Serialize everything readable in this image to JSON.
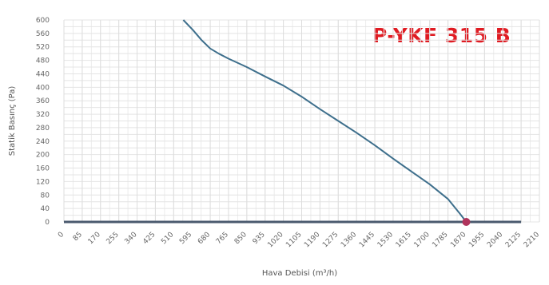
{
  "chart_data": {
    "type": "line",
    "title": "P-YKF 315 B",
    "xlabel": "Hava Debisi (m³/h)",
    "ylabel": "Statik Basınç (Pa)",
    "x_ticks": [
      "0",
      "85",
      "170",
      "255",
      "340",
      "425",
      "510",
      "595",
      "680",
      "765",
      "850",
      "935",
      "1020",
      "1105",
      "1190",
      "1275",
      "1360",
      "1445",
      "1530",
      "1615",
      "1700",
      "1785",
      "1870",
      "1955",
      "2040",
      "2125",
      "2210"
    ],
    "y_ticks": [
      "0",
      "40",
      "80",
      "120",
      "160",
      "200",
      "240",
      "280",
      "320",
      "360",
      "400",
      "440",
      "480",
      "520",
      "560",
      "600"
    ],
    "xlim": [
      0,
      2210
    ],
    "ylim": [
      0,
      600
    ],
    "grid": true,
    "series": [
      {
        "x": [
          555,
          600,
          640,
          680,
          720,
          765,
          850,
          935,
          1020,
          1105,
          1190,
          1275,
          1360,
          1445,
          1530,
          1615,
          1700,
          1785,
          1840,
          1870
        ],
        "y": [
          600,
          570,
          540,
          515,
          500,
          485,
          460,
          432,
          405,
          372,
          335,
          300,
          265,
          228,
          188,
          150,
          112,
          68,
          25,
          0
        ],
        "color": "#3e6f8c"
      }
    ],
    "baseline": {
      "y": 0,
      "xlim": [
        0,
        2125
      ],
      "color": "#4a5a6e"
    },
    "operating_point": {
      "x": 1870,
      "y": 0,
      "color": "#b0345c"
    },
    "title_color": "#e01b22"
  }
}
